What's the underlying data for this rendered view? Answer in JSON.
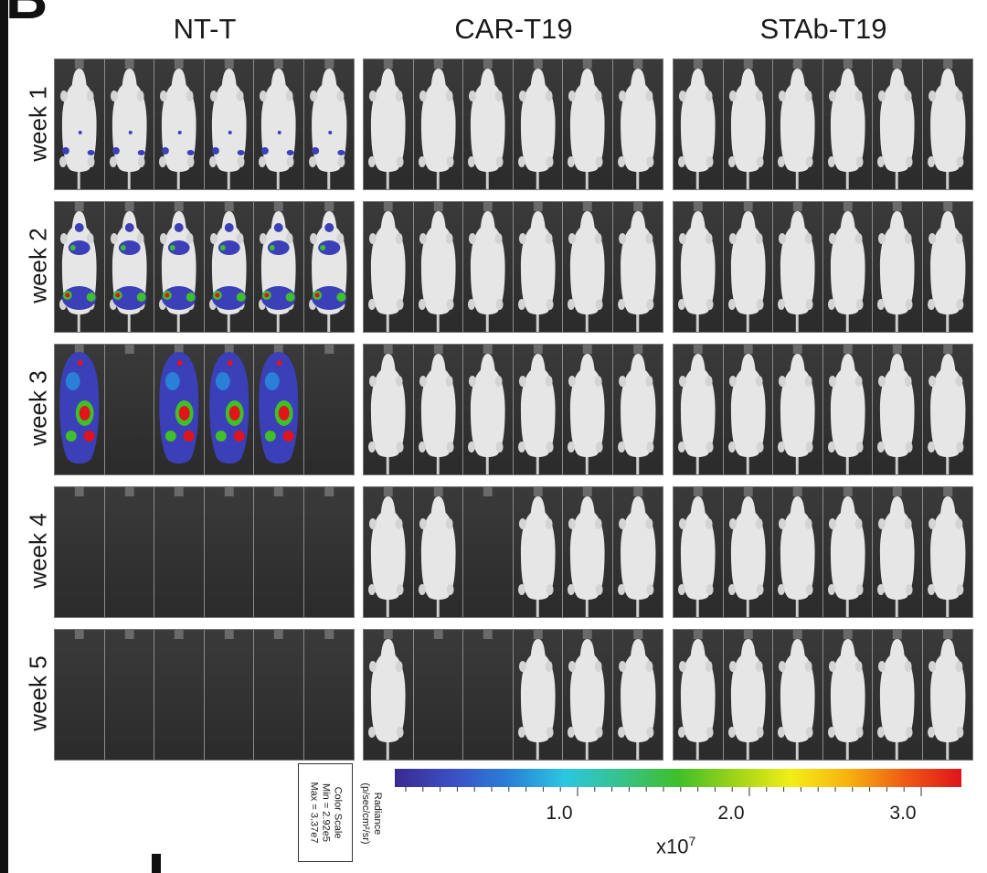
{
  "panel_letter": "B",
  "groups": [
    "NT-T",
    "CAR-T19",
    "STAb-T19"
  ],
  "rows": [
    "week 1",
    "week 2",
    "week 3",
    "week 4",
    "week 5"
  ],
  "colors": {
    "mouse_body": "#e6e6e6",
    "background": "#2b2b2b",
    "signal_low": "#3b3fb8",
    "signal_mid": "#3fbf2a",
    "signal_high": "#e0141a"
  },
  "grid": {
    "NT-T": [
      [
        "spots",
        "spots",
        "spots",
        "spots",
        "spots",
        "spots"
      ],
      [
        "tumor",
        "tumor",
        "tumor",
        "tumor",
        "tumor",
        "tumor"
      ],
      [
        "heavy",
        "empty",
        "heavy",
        "heavy",
        "heavy",
        "empty"
      ],
      [
        "empty",
        "empty",
        "empty",
        "empty",
        "empty",
        "empty"
      ],
      [
        "empty",
        "empty",
        "empty",
        "empty",
        "empty",
        "empty"
      ]
    ],
    "CAR-T19": [
      [
        "mouse",
        "mouse",
        "mouse",
        "mouse",
        "mouse",
        "mouse"
      ],
      [
        "mouse",
        "mouse",
        "mouse",
        "mouse",
        "mouse",
        "mouse"
      ],
      [
        "mouse",
        "mouse",
        "mouse",
        "mouse",
        "mouse",
        "mouse"
      ],
      [
        "mouse",
        "mouse",
        "empty",
        "mouse",
        "mouse",
        "mouse"
      ],
      [
        "mouse",
        "empty",
        "empty",
        "mouse",
        "mouse",
        "mouse"
      ]
    ],
    "STAb-T19": [
      [
        "mouse",
        "mouse",
        "mouse",
        "mouse",
        "mouse",
        "mouse"
      ],
      [
        "mouse",
        "mouse",
        "mouse",
        "mouse",
        "mouse",
        "mouse"
      ],
      [
        "mouse",
        "mouse",
        "mouse",
        "mouse",
        "mouse",
        "mouse"
      ],
      [
        "mouse",
        "mouse",
        "mouse",
        "mouse",
        "mouse",
        "mouse"
      ],
      [
        "mouse",
        "mouse",
        "mouse",
        "mouse",
        "mouse",
        "mouse"
      ]
    ]
  },
  "legend": {
    "color_scale_title": "Color Scale",
    "min": "Min = 2.92e5",
    "max": "Max = 3.37e7",
    "radiance_label": "Radiance",
    "radiance_units": "(p/sec/cm²/sr)",
    "ticks": [
      "1.0",
      "2.0",
      "3.0"
    ],
    "multiplier": "x10",
    "multiplier_exp": "7"
  }
}
